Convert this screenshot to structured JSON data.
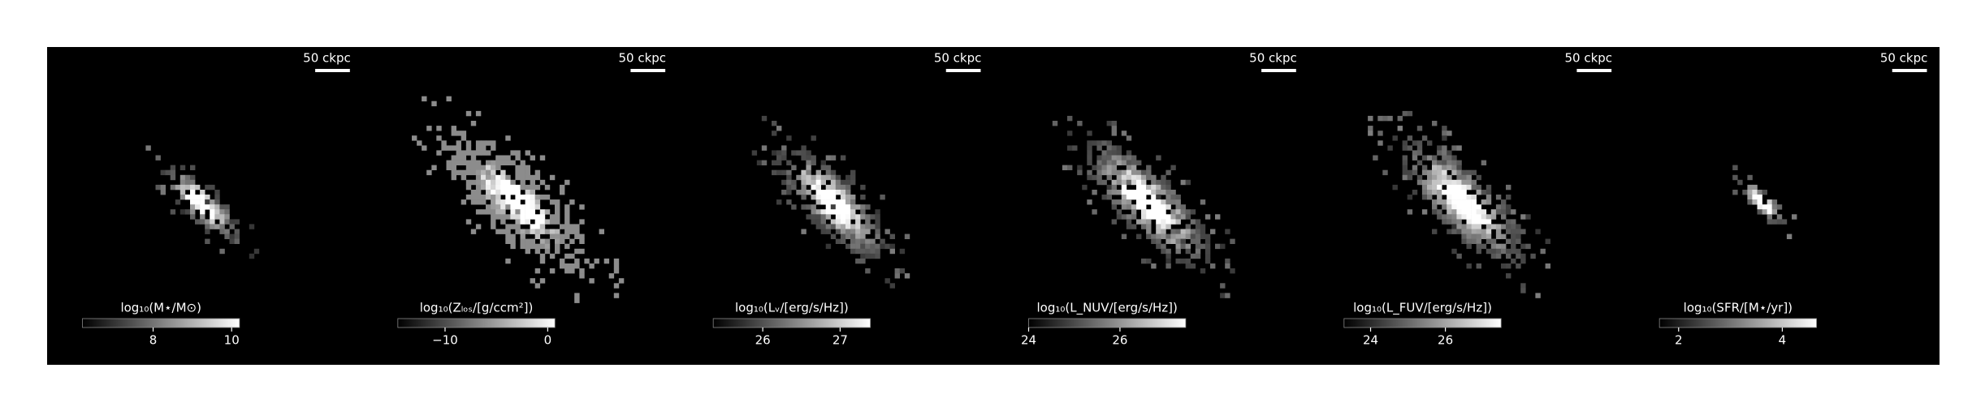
{
  "chart_data": [
    {
      "type": "image",
      "scale_label": "50 ckpc",
      "colorbar_label": "log₁₀(M⋆/M⊙)",
      "clim": [
        6.2,
        10.2
      ],
      "cticks": [
        8,
        10
      ]
    },
    {
      "type": "image",
      "scale_label": "50 ckpc",
      "colorbar_label": "log₁₀(Zₗₒₛ/[g/ccm²])",
      "clim": [
        -14.6,
        0.7
      ],
      "cticks": [
        {
          "value": -10,
          "label": "−10"
        },
        0
      ]
    },
    {
      "type": "image",
      "scale_label": "50 ckpc",
      "colorbar_label": "log₁₀(Lᵥ/[erg/s/Hz])",
      "clim": [
        25.36,
        27.39
      ],
      "cticks": [
        26,
        27
      ]
    },
    {
      "type": "image",
      "scale_label": "50 ckpc",
      "colorbar_label": "log₁₀(L_NUV/[erg/s/Hz])",
      "clim": [
        24,
        27.44
      ],
      "cticks": [
        24,
        26
      ]
    },
    {
      "type": "image",
      "scale_label": "50 ckpc",
      "colorbar_label": "log₁₀(L_FUV/[erg/s/Hz])",
      "clim": [
        23.29,
        27.49
      ],
      "cticks": [
        24,
        26
      ]
    },
    {
      "type": "image",
      "scale_label": "50 ckpc",
      "colorbar_label": "log₁₀(SFR/[M⋆/yr])",
      "clim": [
        1.63,
        4.66
      ],
      "cticks": [
        2,
        4
      ]
    }
  ]
}
